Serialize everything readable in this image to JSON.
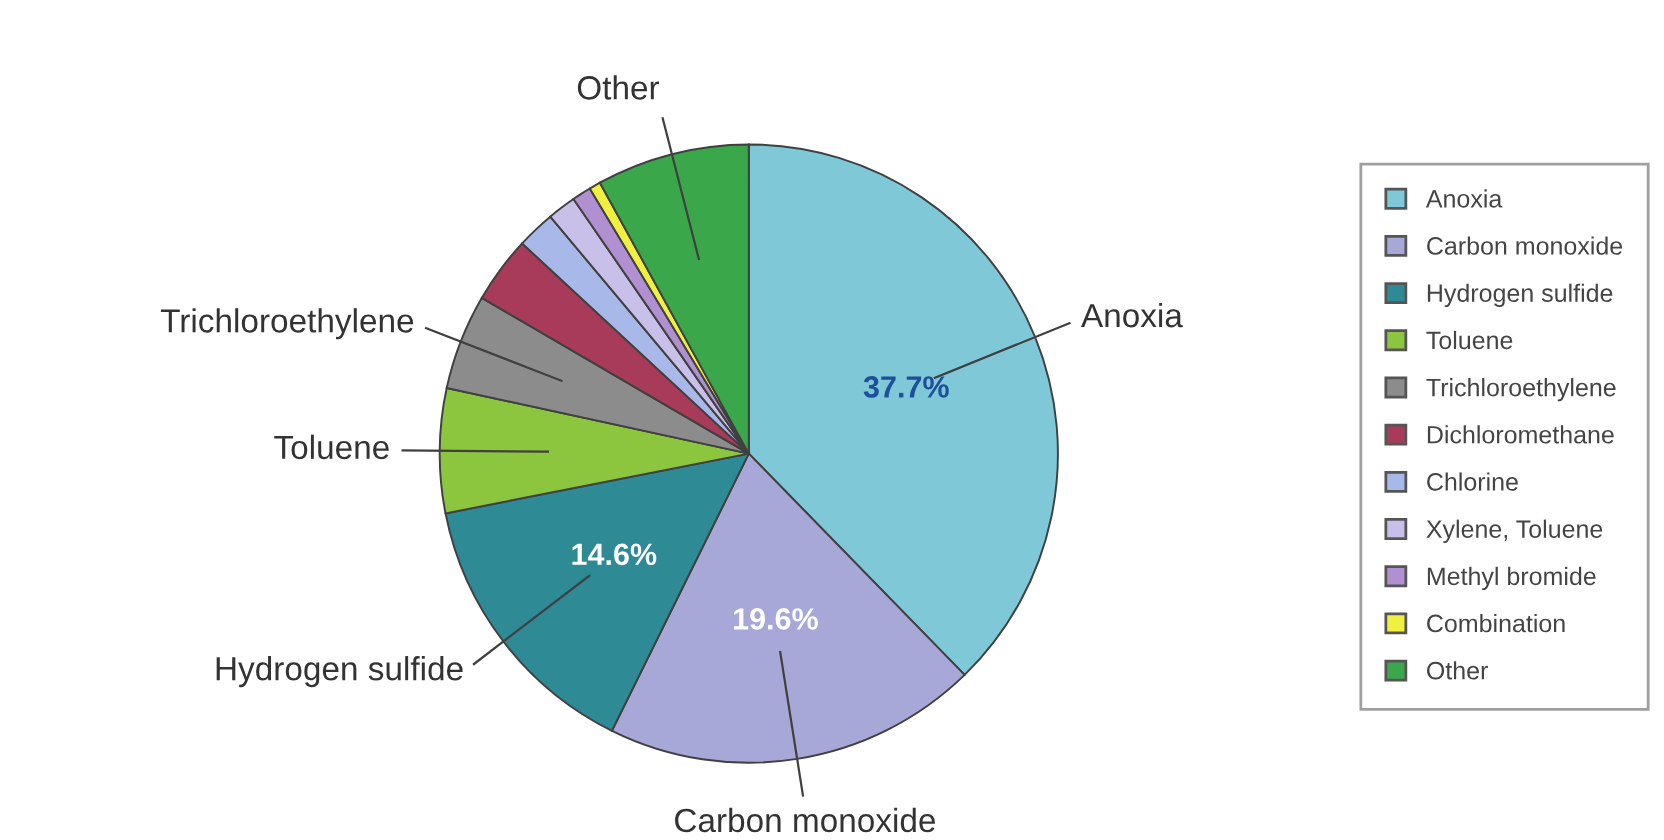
{
  "chart_data": {
    "type": "pie",
    "categories": [
      "Anoxia",
      "Carbon monoxide",
      "Hydrogen sulfide",
      "Toluene",
      "Trichloroethylene",
      "Dichloromethane",
      "Chlorine",
      "Xylene, Toluene",
      "Methyl bromide",
      "Combination",
      "Other"
    ],
    "values": [
      37.7,
      19.6,
      14.6,
      6.5,
      5.0,
      3.5,
      2.0,
      1.5,
      1.0,
      0.6,
      8.0
    ],
    "colors": [
      "#7ec8d8",
      "#a8a8d8",
      "#2e8a94",
      "#8cc63f",
      "#8c8c8c",
      "#a83a5a",
      "#a8b8e8",
      "#c8c0e8",
      "#b090d0",
      "#f0f040",
      "#3aa84a"
    ],
    "value_labels": [
      "37.7%",
      "19.6%",
      "14.6%",
      null,
      null,
      null,
      null,
      null,
      null,
      null,
      null
    ],
    "annotations": [
      {
        "text": "Anoxia",
        "x": "Anoxia"
      },
      {
        "text": "Carbon monoxide",
        "x": "Carbon monoxide"
      },
      {
        "text": "Hydrogen sulfide",
        "x": "Hydrogen sulfide"
      },
      {
        "text": "Toluene",
        "x": "Toluene"
      },
      {
        "text": "Trichloroethylene",
        "x": "Trichloroethylene"
      },
      {
        "text": "Other",
        "x": "Other"
      }
    ],
    "legend": "right"
  }
}
